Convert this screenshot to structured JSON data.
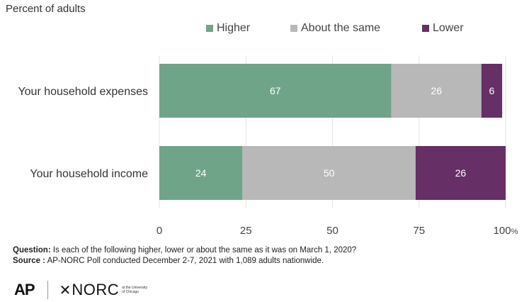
{
  "subtitle": "Percent of adults",
  "legend": [
    {
      "label": "Higher",
      "color": "#6fa488"
    },
    {
      "label": "About the same",
      "color": "#b8b8b8"
    },
    {
      "label": "Lower",
      "color": "#662f65"
    }
  ],
  "chart_data": {
    "type": "bar",
    "orientation": "horizontal",
    "stacked": true,
    "categories": [
      "Your household expenses",
      "Your household income"
    ],
    "series": [
      {
        "name": "Higher",
        "values": [
          67,
          24
        ],
        "color": "#6fa488"
      },
      {
        "name": "About the same",
        "values": [
          26,
          50
        ],
        "color": "#b8b8b8"
      },
      {
        "name": "Lower",
        "values": [
          6,
          26
        ],
        "color": "#662f65"
      }
    ],
    "xlim": [
      0,
      100
    ],
    "xticks": [
      "0",
      "25",
      "50",
      "75",
      "100%"
    ],
    "xtick_values": [
      0,
      25,
      50,
      75,
      100
    ],
    "grid": true,
    "legend_position": "top"
  },
  "footer": {
    "question_label": "Question:",
    "question_text": " Is each of the following higher, lower or about the same as it was on March 1, 2020?",
    "source_label": "Source :",
    "source_text": " AP-NORC Poll conducted December 2-7, 2021 with 1,089 adults nationwide."
  },
  "logos": {
    "ap": "AP",
    "norc": "NORC",
    "norc_sub": "at the University of Chicago"
  }
}
